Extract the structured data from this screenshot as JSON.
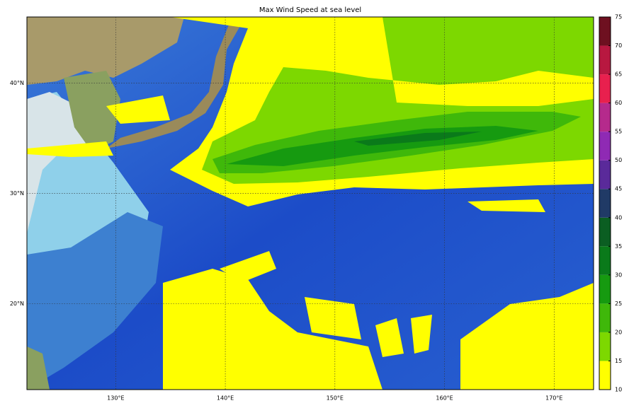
{
  "title": "Max Wind Speed at sea level",
  "map": {
    "lon_range": [
      121.9,
      173.6
    ],
    "lat_range": [
      12.2,
      46.0
    ],
    "lon_ticks": [
      {
        "value": 130,
        "label": "130°E"
      },
      {
        "value": 140,
        "label": "140°E"
      },
      {
        "value": 150,
        "label": "150°E"
      },
      {
        "value": 160,
        "label": "160°E"
      },
      {
        "value": 170,
        "label": "170°E"
      }
    ],
    "lat_ticks": [
      {
        "value": 20,
        "label": "20°N"
      },
      {
        "value": 30,
        "label": "30°N"
      },
      {
        "value": 40,
        "label": "40°N"
      }
    ]
  },
  "colorbar": {
    "ticks": [
      10,
      15,
      20,
      25,
      30,
      35,
      40,
      45,
      50,
      55,
      60,
      65,
      70,
      75
    ],
    "colors": [
      "#ffff00",
      "#7dd800",
      "#3fb80a",
      "#169a10",
      "#0a7a1a",
      "#0b5e22",
      "#203a66",
      "#5a2a9a",
      "#8f2ab4",
      "#b52a8c",
      "#e8204e",
      "#b81840",
      "#6e1020"
    ]
  }
}
